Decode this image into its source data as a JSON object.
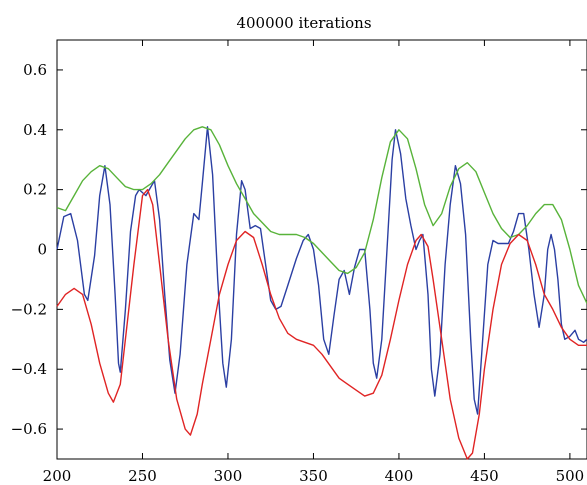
{
  "chart_data": {
    "type": "line",
    "title": "400000 iterations",
    "xlabel": "",
    "ylabel": "",
    "xlim": [
      200,
      510
    ],
    "ylim": [
      -0.7,
      0.7
    ],
    "xticks": [
      200,
      250,
      300,
      350,
      400,
      450,
      500
    ],
    "xtick_labels": [
      "200",
      "250",
      "300",
      "350",
      "400",
      "450",
      "500"
    ],
    "yticks": [
      -0.6,
      -0.4,
      -0.2,
      0,
      0.2,
      0.4,
      0.6
    ],
    "ytick_labels": [
      "−0.6",
      "−0.4",
      "−0.2",
      "0",
      "0.2",
      "0.4",
      "0.6"
    ],
    "grid": false,
    "series": [
      {
        "color": "#2b3fa3",
        "points": [
          [
            200,
            0.0
          ],
          [
            204,
            0.11
          ],
          [
            208,
            0.12
          ],
          [
            212,
            0.03
          ],
          [
            216,
            -0.15
          ],
          [
            218,
            -0.17
          ],
          [
            222,
            -0.02
          ],
          [
            225,
            0.18
          ],
          [
            228,
            0.28
          ],
          [
            231,
            0.15
          ],
          [
            234,
            -0.15
          ],
          [
            236,
            -0.38
          ],
          [
            237,
            -0.41
          ],
          [
            240,
            -0.2
          ],
          [
            243,
            0.06
          ],
          [
            246,
            0.18
          ],
          [
            248,
            0.2
          ],
          [
            252,
            0.18
          ],
          [
            254,
            0.2
          ],
          [
            257,
            0.23
          ],
          [
            260,
            0.1
          ],
          [
            263,
            -0.15
          ],
          [
            266,
            -0.37
          ],
          [
            269,
            -0.48
          ],
          [
            272,
            -0.35
          ],
          [
            276,
            -0.05
          ],
          [
            280,
            0.12
          ],
          [
            283,
            0.1
          ],
          [
            285,
            0.22
          ],
          [
            288,
            0.41
          ],
          [
            291,
            0.25
          ],
          [
            294,
            -0.1
          ],
          [
            297,
            -0.38
          ],
          [
            299,
            -0.46
          ],
          [
            302,
            -0.3
          ],
          [
            305,
            0.05
          ],
          [
            308,
            0.23
          ],
          [
            310,
            0.2
          ],
          [
            313,
            0.07
          ],
          [
            316,
            0.08
          ],
          [
            319,
            0.07
          ],
          [
            322,
            -0.05
          ],
          [
            325,
            -0.17
          ],
          [
            328,
            -0.2
          ],
          [
            331,
            -0.19
          ],
          [
            335,
            -0.12
          ],
          [
            340,
            -0.03
          ],
          [
            344,
            0.03
          ],
          [
            347,
            0.05
          ],
          [
            350,
            0.0
          ],
          [
            353,
            -0.12
          ],
          [
            356,
            -0.3
          ],
          [
            359,
            -0.35
          ],
          [
            362,
            -0.22
          ],
          [
            365,
            -0.1
          ],
          [
            368,
            -0.07
          ],
          [
            371,
            -0.15
          ],
          [
            374,
            -0.06
          ],
          [
            377,
            0.0
          ],
          [
            380,
            0.0
          ],
          [
            383,
            -0.2
          ],
          [
            385,
            -0.38
          ],
          [
            387,
            -0.43
          ],
          [
            390,
            -0.3
          ],
          [
            393,
            0.0
          ],
          [
            396,
            0.3
          ],
          [
            398,
            0.4
          ],
          [
            401,
            0.32
          ],
          [
            404,
            0.17
          ],
          [
            407,
            0.08
          ],
          [
            410,
            0.0
          ],
          [
            412,
            0.03
          ],
          [
            414,
            0.05
          ],
          [
            417,
            -0.15
          ],
          [
            419,
            -0.4
          ],
          [
            421,
            -0.49
          ],
          [
            424,
            -0.35
          ],
          [
            427,
            -0.05
          ],
          [
            430,
            0.15
          ],
          [
            433,
            0.28
          ],
          [
            436,
            0.22
          ],
          [
            439,
            0.05
          ],
          [
            442,
            -0.3
          ],
          [
            444,
            -0.5
          ],
          [
            446,
            -0.55
          ],
          [
            449,
            -0.3
          ],
          [
            452,
            -0.05
          ],
          [
            455,
            0.03
          ],
          [
            458,
            0.02
          ],
          [
            461,
            0.02
          ],
          [
            464,
            0.02
          ],
          [
            467,
            0.06
          ],
          [
            470,
            0.12
          ],
          [
            473,
            0.12
          ],
          [
            476,
            0.0
          ],
          [
            479,
            -0.15
          ],
          [
            482,
            -0.26
          ],
          [
            485,
            -0.15
          ],
          [
            487,
            0.0
          ],
          [
            489,
            0.05
          ],
          [
            491,
            0.0
          ],
          [
            493,
            -0.1
          ],
          [
            495,
            -0.25
          ],
          [
            497,
            -0.3
          ],
          [
            500,
            -0.29
          ],
          [
            503,
            -0.27
          ],
          [
            505,
            -0.3
          ],
          [
            508,
            -0.31
          ],
          [
            510,
            -0.3
          ]
        ]
      },
      {
        "color": "#58b33a",
        "points": [
          [
            200,
            0.14
          ],
          [
            205,
            0.13
          ],
          [
            210,
            0.18
          ],
          [
            215,
            0.23
          ],
          [
            220,
            0.26
          ],
          [
            225,
            0.28
          ],
          [
            230,
            0.27
          ],
          [
            235,
            0.24
          ],
          [
            240,
            0.21
          ],
          [
            245,
            0.2
          ],
          [
            250,
            0.2
          ],
          [
            255,
            0.22
          ],
          [
            260,
            0.25
          ],
          [
            265,
            0.29
          ],
          [
            270,
            0.33
          ],
          [
            275,
            0.37
          ],
          [
            280,
            0.4
          ],
          [
            285,
            0.41
          ],
          [
            290,
            0.4
          ],
          [
            295,
            0.35
          ],
          [
            300,
            0.28
          ],
          [
            305,
            0.22
          ],
          [
            310,
            0.17
          ],
          [
            315,
            0.12
          ],
          [
            320,
            0.09
          ],
          [
            325,
            0.06
          ],
          [
            330,
            0.05
          ],
          [
            335,
            0.05
          ],
          [
            340,
            0.05
          ],
          [
            345,
            0.04
          ],
          [
            350,
            0.02
          ],
          [
            355,
            -0.01
          ],
          [
            360,
            -0.04
          ],
          [
            365,
            -0.07
          ],
          [
            370,
            -0.08
          ],
          [
            375,
            -0.06
          ],
          [
            380,
            -0.01
          ],
          [
            385,
            0.1
          ],
          [
            390,
            0.24
          ],
          [
            395,
            0.36
          ],
          [
            400,
            0.4
          ],
          [
            405,
            0.37
          ],
          [
            410,
            0.27
          ],
          [
            415,
            0.15
          ],
          [
            420,
            0.08
          ],
          [
            425,
            0.12
          ],
          [
            430,
            0.21
          ],
          [
            435,
            0.27
          ],
          [
            440,
            0.29
          ],
          [
            445,
            0.26
          ],
          [
            450,
            0.19
          ],
          [
            455,
            0.12
          ],
          [
            460,
            0.07
          ],
          [
            465,
            0.04
          ],
          [
            470,
            0.05
          ],
          [
            475,
            0.08
          ],
          [
            480,
            0.12
          ],
          [
            485,
            0.15
          ],
          [
            490,
            0.15
          ],
          [
            495,
            0.1
          ],
          [
            500,
            0.0
          ],
          [
            505,
            -0.12
          ],
          [
            510,
            -0.18
          ]
        ]
      },
      {
        "color": "#e02424",
        "points": [
          [
            200,
            -0.19
          ],
          [
            205,
            -0.15
          ],
          [
            210,
            -0.13
          ],
          [
            215,
            -0.15
          ],
          [
            220,
            -0.25
          ],
          [
            225,
            -0.38
          ],
          [
            230,
            -0.48
          ],
          [
            233,
            -0.51
          ],
          [
            237,
            -0.45
          ],
          [
            240,
            -0.3
          ],
          [
            245,
            -0.05
          ],
          [
            250,
            0.18
          ],
          [
            253,
            0.2
          ],
          [
            256,
            0.15
          ],
          [
            260,
            -0.05
          ],
          [
            265,
            -0.3
          ],
          [
            270,
            -0.5
          ],
          [
            275,
            -0.6
          ],
          [
            278,
            -0.62
          ],
          [
            282,
            -0.55
          ],
          [
            285,
            -0.45
          ],
          [
            290,
            -0.3
          ],
          [
            295,
            -0.15
          ],
          [
            300,
            -0.05
          ],
          [
            305,
            0.03
          ],
          [
            310,
            0.06
          ],
          [
            315,
            0.04
          ],
          [
            320,
            -0.05
          ],
          [
            325,
            -0.15
          ],
          [
            330,
            -0.23
          ],
          [
            335,
            -0.28
          ],
          [
            340,
            -0.3
          ],
          [
            345,
            -0.31
          ],
          [
            350,
            -0.32
          ],
          [
            355,
            -0.35
          ],
          [
            360,
            -0.39
          ],
          [
            365,
            -0.43
          ],
          [
            370,
            -0.45
          ],
          [
            375,
            -0.47
          ],
          [
            380,
            -0.49
          ],
          [
            385,
            -0.48
          ],
          [
            390,
            -0.42
          ],
          [
            395,
            -0.3
          ],
          [
            400,
            -0.17
          ],
          [
            405,
            -0.05
          ],
          [
            410,
            0.03
          ],
          [
            413,
            0.05
          ],
          [
            417,
            0.01
          ],
          [
            420,
            -0.1
          ],
          [
            425,
            -0.3
          ],
          [
            430,
            -0.5
          ],
          [
            435,
            -0.63
          ],
          [
            440,
            -0.7
          ],
          [
            443,
            -0.68
          ],
          [
            447,
            -0.55
          ],
          [
            450,
            -0.4
          ],
          [
            455,
            -0.2
          ],
          [
            460,
            -0.05
          ],
          [
            465,
            0.02
          ],
          [
            470,
            0.05
          ],
          [
            475,
            0.03
          ],
          [
            480,
            -0.05
          ],
          [
            485,
            -0.15
          ],
          [
            490,
            -0.2
          ],
          [
            495,
            -0.26
          ],
          [
            500,
            -0.3
          ],
          [
            505,
            -0.32
          ],
          [
            510,
            -0.32
          ]
        ]
      }
    ]
  }
}
